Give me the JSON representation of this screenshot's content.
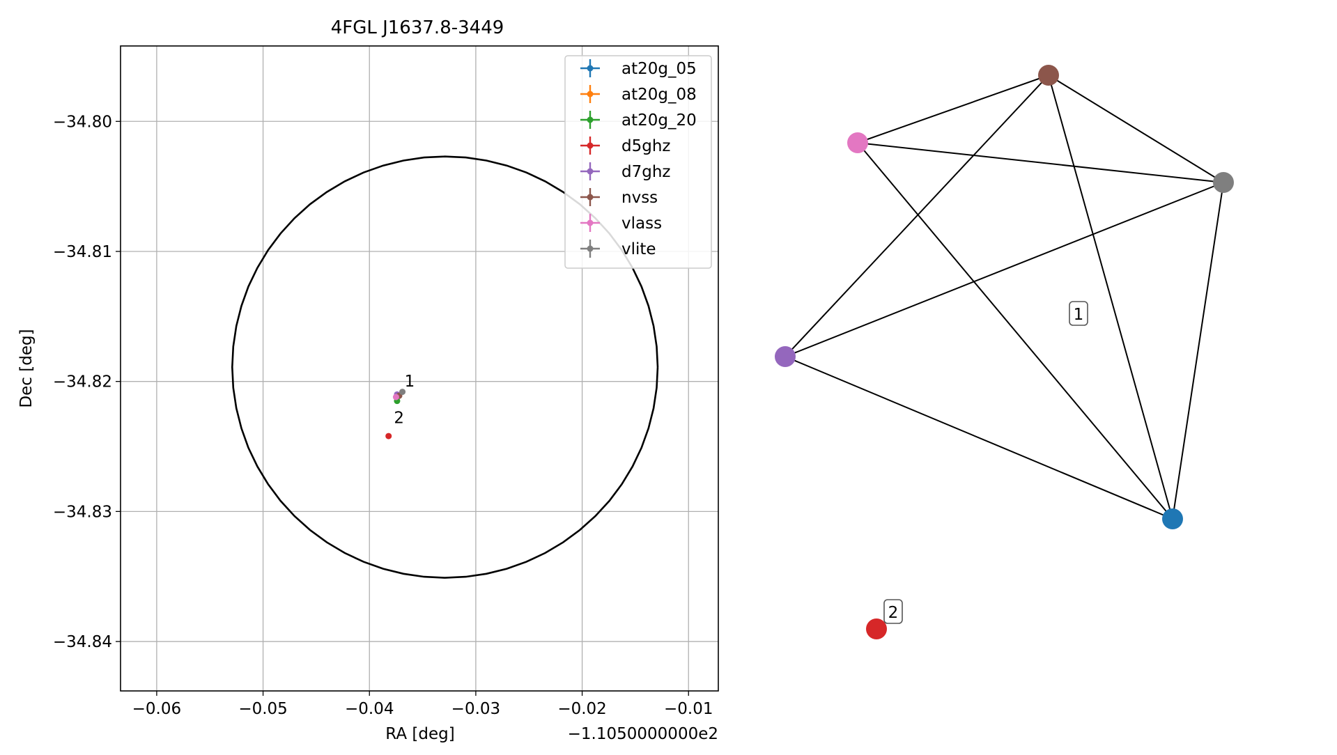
{
  "chart_data": [
    {
      "type": "scatter",
      "title": "4FGL J1637.8-3449",
      "xlabel": "RA [deg]",
      "ylabel": "Dec [deg]",
      "x_offset_label": "−1.1050000000e2",
      "xlim": [
        -0.0634,
        -0.0072
      ],
      "ylim": [
        -34.8438,
        -34.7942
      ],
      "xticks": [
        -0.06,
        -0.05,
        -0.04,
        -0.03,
        -0.02,
        -0.01
      ],
      "xtick_labels": [
        "−0.06",
        "−0.05",
        "−0.04",
        "−0.03",
        "−0.02",
        "−0.01"
      ],
      "yticks": [
        -34.8,
        -34.81,
        -34.82,
        -34.83,
        -34.84
      ],
      "ytick_labels": [
        "−34.80",
        "−34.81",
        "−34.82",
        "−34.83",
        "−34.84"
      ],
      "grid": true,
      "legend_position": "top-right",
      "ellipse": {
        "center_x": -0.0329,
        "center_y": -34.8189,
        "radius_x": 0.02,
        "radius_y": 0.0162,
        "color": "#000000"
      },
      "series": [
        {
          "name": "at20g_05",
          "color": "#1f77b4",
          "points": [
            {
              "x": -0.0374,
              "y": -34.8212
            }
          ]
        },
        {
          "name": "at20g_08",
          "color": "#ff7f0e",
          "points": [
            {
              "x": -0.0374,
              "y": -34.8212
            }
          ]
        },
        {
          "name": "at20g_20",
          "color": "#2ca02c",
          "points": [
            {
              "x": -0.0374,
              "y": -34.8215
            }
          ]
        },
        {
          "name": "d5ghz",
          "color": "#d62728",
          "points": [
            {
              "x": -0.0382,
              "y": -34.8242
            }
          ]
        },
        {
          "name": "d7ghz",
          "color": "#9467bd",
          "points": [
            {
              "x": -0.0374,
              "y": -34.821
            }
          ]
        },
        {
          "name": "nvss",
          "color": "#8c564b",
          "points": [
            {
              "x": -0.0372,
              "y": -34.8211
            }
          ]
        },
        {
          "name": "vlass",
          "color": "#e377c2",
          "points": [
            {
              "x": -0.0375,
              "y": -34.8212
            }
          ]
        },
        {
          "name": "vlite",
          "color": "#7f7f7f",
          "points": [
            {
              "x": -0.0369,
              "y": -34.8208
            }
          ]
        }
      ],
      "annotations": [
        {
          "text": "1",
          "x": -0.0367,
          "y": -34.8204
        },
        {
          "text": "2",
          "x": -0.0377,
          "y": -34.8232
        }
      ]
    },
    {
      "type": "network",
      "nodes": [
        {
          "id": "at20g_05",
          "color": "#1f77b4"
        },
        {
          "id": "nvss",
          "color": "#8c564b"
        },
        {
          "id": "vlass",
          "color": "#e377c2"
        },
        {
          "id": "vlite",
          "color": "#7f7f7f"
        },
        {
          "id": "d7ghz",
          "color": "#9467bd"
        },
        {
          "id": "d5ghz",
          "color": "#d62728"
        }
      ],
      "edges": [
        [
          "nvss",
          "vlass"
        ],
        [
          "nvss",
          "d7ghz"
        ],
        [
          "nvss",
          "at20g_05"
        ],
        [
          "nvss",
          "vlite"
        ],
        [
          "vlass",
          "vlite"
        ],
        [
          "vlass",
          "at20g_05"
        ],
        [
          "d7ghz",
          "vlite"
        ],
        [
          "d7ghz",
          "at20g_05"
        ],
        [
          "vlite",
          "at20g_05"
        ]
      ],
      "group_labels": [
        {
          "text": "1",
          "group": "1"
        },
        {
          "text": "2",
          "group": "2"
        }
      ]
    }
  ]
}
